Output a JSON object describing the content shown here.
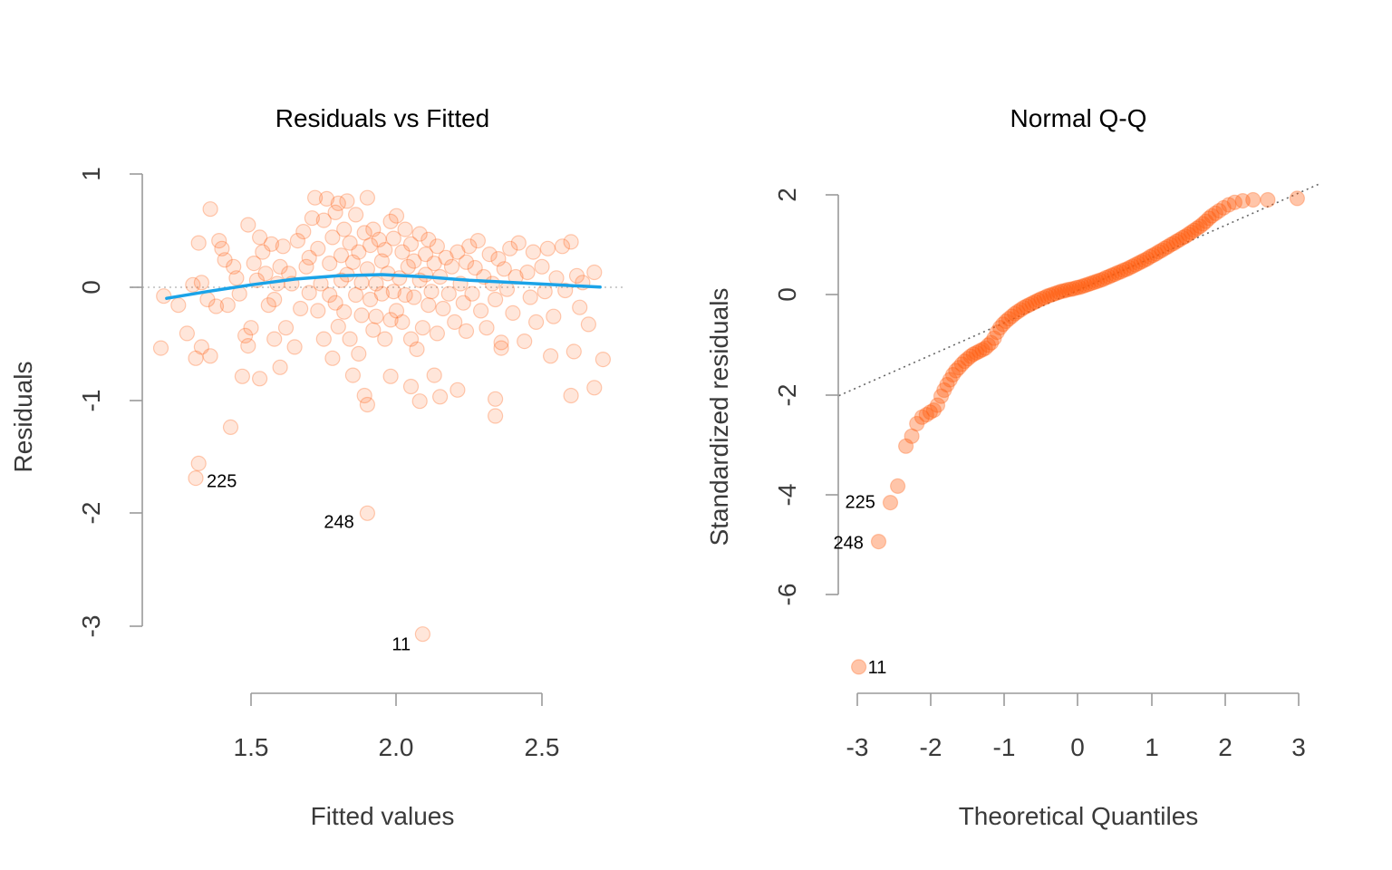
{
  "colors": {
    "point_fill": "#ff5a0a",
    "point_fill_opacity": 0.15,
    "point_stroke_opacity": 0.3,
    "qq_point_fill_opacity": 0.35,
    "smooth_line": "#1aa3e8",
    "axis": "#9a9a9a",
    "text": "#3a3a3a"
  },
  "chart_data": [
    {
      "type": "scatter",
      "title": "Residuals vs Fitted",
      "xlabel": "Fitted values",
      "ylabel": "Residuals",
      "xlim": [
        1.15,
        2.78
      ],
      "ylim": [
        -3.35,
        1.15
      ],
      "xticks": [
        1.5,
        2.0,
        2.5
      ],
      "xtick_labels": [
        "1.5",
        "2.0",
        "2.5"
      ],
      "yticks": [
        1,
        0,
        -1,
        -2,
        -3
      ],
      "ytick_labels": [
        "1",
        "0",
        "-1",
        "-2",
        "-3"
      ],
      "zero_reference": 0,
      "points": [
        [
          1.19,
          -0.54
        ],
        [
          1.2,
          -0.08
        ],
        [
          1.25,
          -0.16
        ],
        [
          1.28,
          -0.41
        ],
        [
          1.3,
          0.02
        ],
        [
          1.31,
          -0.63
        ],
        [
          1.32,
          0.39
        ],
        [
          1.33,
          0.04
        ],
        [
          1.33,
          -0.53
        ],
        [
          1.35,
          -0.11
        ],
        [
          1.36,
          0.69
        ],
        [
          1.36,
          -0.61
        ],
        [
          1.38,
          -0.17
        ],
        [
          1.39,
          0.41
        ],
        [
          1.4,
          0.34
        ],
        [
          1.41,
          0.24
        ],
        [
          1.42,
          -0.16
        ],
        [
          1.43,
          -1.24
        ],
        [
          1.44,
          0.18
        ],
        [
          1.45,
          0.08
        ],
        [
          1.46,
          -0.06
        ],
        [
          1.47,
          -0.79
        ],
        [
          1.48,
          -0.43
        ],
        [
          1.49,
          0.55
        ],
        [
          1.49,
          -0.52
        ],
        [
          1.5,
          -0.36
        ],
        [
          1.51,
          0.21
        ],
        [
          1.52,
          0.06
        ],
        [
          1.53,
          0.44
        ],
        [
          1.53,
          -0.81
        ],
        [
          1.54,
          0.31
        ],
        [
          1.55,
          0.12
        ],
        [
          1.56,
          -0.16
        ],
        [
          1.57,
          0.38
        ],
        [
          1.58,
          -0.11
        ],
        [
          1.58,
          -0.46
        ],
        [
          1.59,
          0.03
        ],
        [
          1.6,
          0.18
        ],
        [
          1.6,
          -0.71
        ],
        [
          1.61,
          0.36
        ],
        [
          1.62,
          -0.36
        ],
        [
          1.63,
          0.12
        ],
        [
          1.64,
          0.03
        ],
        [
          1.65,
          -0.53
        ],
        [
          1.66,
          0.41
        ],
        [
          1.67,
          -0.19
        ],
        [
          1.68,
          0.49
        ],
        [
          1.69,
          0.18
        ],
        [
          1.7,
          0.26
        ],
        [
          1.7,
          -0.05
        ],
        [
          1.71,
          0.61
        ],
        [
          1.72,
          0.79
        ],
        [
          1.73,
          0.34
        ],
        [
          1.73,
          -0.21
        ],
        [
          1.74,
          0.03
        ],
        [
          1.75,
          0.59
        ],
        [
          1.75,
          -0.46
        ],
        [
          1.76,
          0.78
        ],
        [
          1.77,
          0.21
        ],
        [
          1.77,
          -0.07
        ],
        [
          1.78,
          0.44
        ],
        [
          1.78,
          -0.63
        ],
        [
          1.79,
          0.66
        ],
        [
          1.79,
          -0.14
        ],
        [
          1.8,
          0.74
        ],
        [
          1.8,
          -0.35
        ],
        [
          1.81,
          0.28
        ],
        [
          1.81,
          0.06
        ],
        [
          1.82,
          0.51
        ],
        [
          1.82,
          -0.22
        ],
        [
          1.83,
          0.76
        ],
        [
          1.83,
          0.11
        ],
        [
          1.84,
          -0.46
        ],
        [
          1.84,
          0.39
        ],
        [
          1.85,
          0.22
        ],
        [
          1.86,
          -0.07
        ],
        [
          1.86,
          0.64
        ],
        [
          1.87,
          -0.59
        ],
        [
          1.87,
          0.31
        ],
        [
          1.88,
          0.04
        ],
        [
          1.88,
          -0.25
        ],
        [
          1.89,
          0.48
        ],
        [
          1.89,
          -0.96
        ],
        [
          1.9,
          0.79
        ],
        [
          1.9,
          0.16
        ],
        [
          1.91,
          -0.11
        ],
        [
          1.91,
          0.37
        ],
        [
          1.92,
          -0.38
        ],
        [
          1.92,
          0.51
        ],
        [
          1.93,
          0.03
        ],
        [
          1.93,
          -0.26
        ],
        [
          1.94,
          0.42
        ],
        [
          1.95,
          -0.06
        ],
        [
          1.95,
          0.23
        ],
        [
          1.96,
          -0.46
        ],
        [
          1.96,
          0.33
        ],
        [
          1.97,
          0.12
        ],
        [
          1.98,
          -0.29
        ],
        [
          1.98,
          0.58
        ],
        [
          1.99,
          -0.04
        ],
        [
          1.99,
          0.43
        ],
        [
          2.0,
          -0.21
        ],
        [
          2.0,
          0.63
        ],
        [
          2.01,
          0.08
        ],
        [
          2.02,
          -0.31
        ],
        [
          2.02,
          0.31
        ],
        [
          2.03,
          0.51
        ],
        [
          2.03,
          -0.07
        ],
        [
          2.04,
          0.18
        ],
        [
          2.05,
          -0.46
        ],
        [
          2.05,
          0.38
        ],
        [
          2.06,
          -0.09
        ],
        [
          2.06,
          0.23
        ],
        [
          2.07,
          -0.55
        ],
        [
          2.08,
          0.47
        ],
        [
          2.08,
          0.06
        ],
        [
          2.09,
          -0.36
        ],
        [
          2.1,
          0.29
        ],
        [
          2.1,
          0.11
        ],
        [
          2.11,
          -0.16
        ],
        [
          2.11,
          0.42
        ],
        [
          2.12,
          -0.04
        ],
        [
          2.13,
          0.21
        ],
        [
          2.14,
          -0.41
        ],
        [
          2.14,
          0.36
        ],
        [
          2.15,
          0.09
        ],
        [
          2.16,
          -0.19
        ],
        [
          2.17,
          0.26
        ],
        [
          2.18,
          -0.06
        ],
        [
          2.19,
          0.18
        ],
        [
          2.2,
          -0.31
        ],
        [
          2.21,
          0.31
        ],
        [
          2.22,
          0.03
        ],
        [
          2.23,
          -0.14
        ],
        [
          2.24,
          0.22
        ],
        [
          2.25,
          0.36
        ],
        [
          2.26,
          -0.06
        ],
        [
          2.27,
          0.17
        ],
        [
          2.28,
          0.41
        ],
        [
          2.29,
          -0.21
        ],
        [
          2.3,
          0.09
        ],
        [
          2.31,
          -0.36
        ],
        [
          2.32,
          0.29
        ],
        [
          2.33,
          0.03
        ],
        [
          2.34,
          -0.11
        ],
        [
          2.35,
          0.25
        ],
        [
          2.36,
          -0.54
        ],
        [
          2.37,
          0.16
        ],
        [
          2.38,
          -0.02
        ],
        [
          2.39,
          0.34
        ],
        [
          2.4,
          -0.23
        ],
        [
          2.41,
          0.09
        ],
        [
          2.42,
          0.39
        ],
        [
          2.44,
          -0.48
        ],
        [
          2.45,
          0.13
        ],
        [
          2.46,
          -0.09
        ],
        [
          2.47,
          0.31
        ],
        [
          2.48,
          -0.31
        ],
        [
          2.5,
          0.18
        ],
        [
          2.51,
          -0.04
        ],
        [
          2.52,
          0.34
        ],
        [
          2.54,
          -0.26
        ],
        [
          2.55,
          0.08
        ],
        [
          2.57,
          0.36
        ],
        [
          2.58,
          -0.03
        ],
        [
          2.6,
          0.4
        ],
        [
          2.62,
          0.1
        ],
        [
          2.63,
          -0.18
        ],
        [
          2.64,
          0.04
        ],
        [
          2.66,
          -0.33
        ],
        [
          2.68,
          0.13
        ],
        [
          2.34,
          -1.14
        ],
        [
          2.34,
          -0.99
        ],
        [
          2.15,
          -0.97
        ],
        [
          2.13,
          -0.78
        ],
        [
          1.9,
          -1.04
        ],
        [
          2.05,
          -0.88
        ],
        [
          1.98,
          -0.79
        ],
        [
          1.85,
          -0.78
        ],
        [
          2.24,
          -0.39
        ],
        [
          2.36,
          -0.49
        ],
        [
          2.6,
          -0.96
        ],
        [
          2.68,
          -0.89
        ],
        [
          2.71,
          -0.64
        ],
        [
          2.53,
          -0.61
        ],
        [
          2.61,
          -0.57
        ],
        [
          2.08,
          -1.01
        ],
        [
          2.21,
          -0.91
        ],
        [
          1.32,
          -1.56
        ],
        [
          1.31,
          -1.69
        ],
        [
          1.9,
          -2.0
        ],
        [
          2.09,
          -3.07
        ]
      ],
      "smooth_curve": [
        [
          1.21,
          -0.1
        ],
        [
          1.35,
          -0.04
        ],
        [
          1.5,
          0.02
        ],
        [
          1.65,
          0.07
        ],
        [
          1.8,
          0.1
        ],
        [
          1.95,
          0.11
        ],
        [
          2.1,
          0.09
        ],
        [
          2.25,
          0.06
        ],
        [
          2.4,
          0.04
        ],
        [
          2.55,
          0.02
        ],
        [
          2.7,
          0.0
        ]
      ],
      "labeled_points": [
        {
          "x": 1.31,
          "y": -1.69,
          "label": "225"
        },
        {
          "x": 1.9,
          "y": -2.0,
          "label": "248"
        },
        {
          "x": 2.09,
          "y": -3.07,
          "label": "11"
        }
      ]
    },
    {
      "type": "scatter",
      "title": "Normal Q-Q",
      "xlabel": "Theoretical Quantiles",
      "ylabel": "Standardized residuals",
      "xlim": [
        -3.25,
        3.3
      ],
      "ylim": [
        -7.9,
        2.5
      ],
      "xticks": [
        -3,
        -2,
        -1,
        0,
        1,
        2,
        3
      ],
      "xtick_labels": [
        "-3",
        "-2",
        "-1",
        "0",
        "1",
        "2",
        "3"
      ],
      "yticks": [
        2,
        0,
        -2,
        -4,
        -6
      ],
      "ytick_labels": [
        "2",
        "0",
        "-2",
        "-4",
        "-6"
      ],
      "reference_line": [
        [
          -3.25,
          -2.02
        ],
        [
          3.3,
          2.23
        ]
      ],
      "points": [
        [
          -2.98,
          -7.45
        ],
        [
          -2.71,
          -4.94
        ],
        [
          -2.55,
          -4.16
        ],
        [
          -2.45,
          -3.83
        ],
        [
          -2.34,
          -3.03
        ],
        [
          -2.26,
          -2.83
        ],
        [
          -2.19,
          -2.58
        ],
        [
          -2.12,
          -2.45
        ],
        [
          -2.06,
          -2.4
        ],
        [
          -2.01,
          -2.35
        ],
        [
          -1.96,
          -2.31
        ],
        [
          -1.91,
          -2.21
        ],
        [
          -1.86,
          -2.03
        ],
        [
          -1.82,
          -1.91
        ],
        [
          -1.78,
          -1.8
        ],
        [
          -1.74,
          -1.7
        ],
        [
          -1.7,
          -1.6
        ],
        [
          -1.66,
          -1.52
        ],
        [
          -1.62,
          -1.46
        ],
        [
          -1.58,
          -1.39
        ],
        [
          -1.54,
          -1.33
        ],
        [
          -1.5,
          -1.28
        ],
        [
          -1.46,
          -1.23
        ],
        [
          -1.42,
          -1.19
        ],
        [
          -1.38,
          -1.16
        ],
        [
          -1.34,
          -1.13
        ],
        [
          -1.3,
          -1.1
        ],
        [
          -1.26,
          -1.07
        ],
        [
          -1.22,
          -1.01
        ],
        [
          -1.18,
          -0.96
        ],
        [
          -1.14,
          -0.87
        ],
        [
          -1.1,
          -0.75
        ],
        [
          -1.06,
          -0.66
        ],
        [
          -1.02,
          -0.59
        ],
        [
          -0.98,
          -0.53
        ],
        [
          -0.94,
          -0.48
        ],
        [
          -0.9,
          -0.43
        ],
        [
          -0.86,
          -0.38
        ],
        [
          -0.82,
          -0.34
        ],
        [
          -0.78,
          -0.3
        ],
        [
          -0.74,
          -0.26
        ],
        [
          -0.7,
          -0.23
        ],
        [
          -0.66,
          -0.2
        ],
        [
          -0.62,
          -0.17
        ],
        [
          -0.58,
          -0.14
        ],
        [
          -0.54,
          -0.11
        ],
        [
          -0.5,
          -0.08
        ],
        [
          -0.46,
          -0.06
        ],
        [
          -0.42,
          -0.03
        ],
        [
          -0.38,
          -0.01
        ],
        [
          -0.34,
          0.01
        ],
        [
          -0.3,
          0.03
        ],
        [
          -0.26,
          0.05
        ],
        [
          -0.22,
          0.07
        ],
        [
          -0.18,
          0.08
        ],
        [
          -0.14,
          0.1
        ],
        [
          -0.1,
          0.11
        ],
        [
          -0.06,
          0.12
        ],
        [
          -0.02,
          0.14
        ],
        [
          0.02,
          0.15
        ],
        [
          0.06,
          0.17
        ],
        [
          0.1,
          0.19
        ],
        [
          0.14,
          0.21
        ],
        [
          0.18,
          0.23
        ],
        [
          0.22,
          0.25
        ],
        [
          0.26,
          0.27
        ],
        [
          0.3,
          0.29
        ],
        [
          0.34,
          0.31
        ],
        [
          0.38,
          0.34
        ],
        [
          0.42,
          0.36
        ],
        [
          0.46,
          0.39
        ],
        [
          0.5,
          0.41
        ],
        [
          0.54,
          0.44
        ],
        [
          0.58,
          0.46
        ],
        [
          0.62,
          0.49
        ],
        [
          0.66,
          0.51
        ],
        [
          0.7,
          0.54
        ],
        [
          0.74,
          0.57
        ],
        [
          0.78,
          0.6
        ],
        [
          0.82,
          0.63
        ],
        [
          0.86,
          0.66
        ],
        [
          0.9,
          0.69
        ],
        [
          0.94,
          0.72
        ],
        [
          0.98,
          0.76
        ],
        [
          1.02,
          0.79
        ],
        [
          1.06,
          0.82
        ],
        [
          1.1,
          0.86
        ],
        [
          1.14,
          0.89
        ],
        [
          1.18,
          0.93
        ],
        [
          1.22,
          0.96
        ],
        [
          1.26,
          1.0
        ],
        [
          1.3,
          1.03
        ],
        [
          1.34,
          1.07
        ],
        [
          1.38,
          1.1
        ],
        [
          1.42,
          1.14
        ],
        [
          1.46,
          1.17
        ],
        [
          1.5,
          1.21
        ],
        [
          1.54,
          1.25
        ],
        [
          1.58,
          1.29
        ],
        [
          1.62,
          1.33
        ],
        [
          1.66,
          1.37
        ],
        [
          1.7,
          1.42
        ],
        [
          1.74,
          1.47
        ],
        [
          1.78,
          1.53
        ],
        [
          1.82,
          1.58
        ],
        [
          1.87,
          1.63
        ],
        [
          1.92,
          1.68
        ],
        [
          1.98,
          1.74
        ],
        [
          2.05,
          1.8
        ],
        [
          2.13,
          1.85
        ],
        [
          2.24,
          1.88
        ],
        [
          2.38,
          1.9
        ],
        [
          2.58,
          1.9
        ],
        [
          2.98,
          1.93
        ]
      ],
      "labeled_points": [
        {
          "x": -2.55,
          "y": -4.16,
          "label": "225"
        },
        {
          "x": -2.71,
          "y": -4.94,
          "label": "248"
        },
        {
          "x": -2.98,
          "y": -7.45,
          "label": "11"
        }
      ]
    }
  ]
}
